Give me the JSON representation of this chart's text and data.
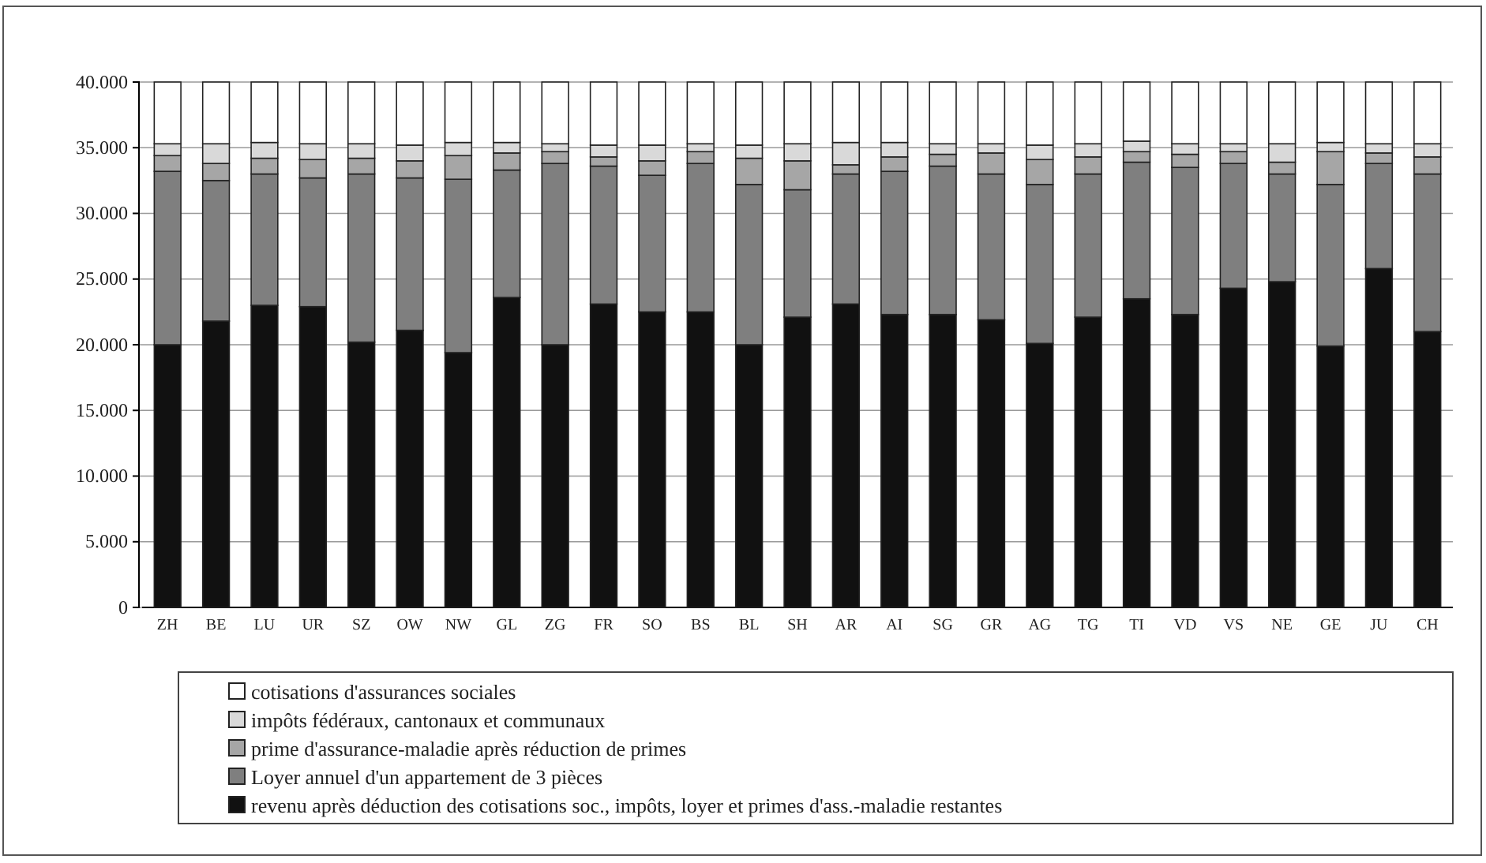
{
  "chart_data": {
    "type": "bar",
    "stacked": true,
    "categories": [
      "ZH",
      "BE",
      "LU",
      "UR",
      "SZ",
      "OW",
      "NW",
      "GL",
      "ZG",
      "FR",
      "SO",
      "BS",
      "BL",
      "SH",
      "AR",
      "AI",
      "SG",
      "GR",
      "AG",
      "TG",
      "TI",
      "VD",
      "VS",
      "NE",
      "GE",
      "JU",
      "CH"
    ],
    "series": [
      {
        "name": "revenu après déduction des cotisations soc., impôts, loyer et primes d'ass.-maladie restantes",
        "color": "#111111",
        "values": [
          20000,
          21800,
          23000,
          22900,
          20200,
          21100,
          19400,
          23600,
          20000,
          23100,
          22500,
          22500,
          20000,
          22100,
          23100,
          22300,
          22300,
          21900,
          20100,
          22100,
          23500,
          22300,
          24300,
          24800,
          19900,
          25800,
          21000
        ]
      },
      {
        "name": "Loyer annuel d'un appartement de 3 pièces",
        "color": "#7f7f7f",
        "values": [
          13200,
          10700,
          10000,
          9800,
          12800,
          11600,
          13200,
          9700,
          13800,
          10500,
          10400,
          11300,
          12200,
          9700,
          9900,
          10900,
          11300,
          11100,
          12100,
          10900,
          10400,
          11200,
          9500,
          8200,
          12300,
          8000,
          12000
        ]
      },
      {
        "name": "prime d'assurance-maladie après réduction de primes",
        "color": "#a6a6a6",
        "values": [
          1200,
          1300,
          1200,
          1400,
          1200,
          1300,
          1800,
          1300,
          900,
          700,
          1100,
          900,
          2000,
          2200,
          700,
          1100,
          900,
          1600,
          1900,
          1300,
          800,
          1000,
          900,
          900,
          2500,
          800,
          1300
        ]
      },
      {
        "name": "impôts fédéraux, cantonaux et communaux",
        "color": "#d9d9d9",
        "values": [
          900,
          1500,
          1200,
          1200,
          1100,
          1200,
          1000,
          800,
          600,
          900,
          1200,
          600,
          1000,
          1300,
          1700,
          1100,
          800,
          700,
          1100,
          1000,
          800,
          800,
          600,
          1400,
          700,
          700,
          1000
        ]
      },
      {
        "name": "cotisations d'assurances sociales",
        "color": "#ffffff",
        "values": [
          4700,
          4700,
          4600,
          4700,
          4700,
          4800,
          4600,
          4600,
          4700,
          4800,
          4800,
          4700,
          4800,
          4700,
          4600,
          4600,
          4700,
          4700,
          4800,
          4700,
          4500,
          4700,
          4700,
          4700,
          4600,
          4700,
          4700
        ]
      }
    ],
    "ylim": [
      0,
      40000
    ],
    "yticks": [
      0,
      {
        "value": 5000,
        "label": "5.000"
      },
      {
        "value": 10000,
        "label": "10.000"
      },
      {
        "value": 15000,
        "label": "15.000"
      },
      {
        "value": 20000,
        "label": "20.000"
      },
      {
        "value": 25000,
        "label": "25.000"
      },
      {
        "value": 30000,
        "label": "30.000"
      },
      {
        "value": 35000,
        "label": "35.000"
      },
      {
        "value": 40000,
        "label": "40.000"
      }
    ],
    "grid": "y",
    "legend": "bottom"
  }
}
